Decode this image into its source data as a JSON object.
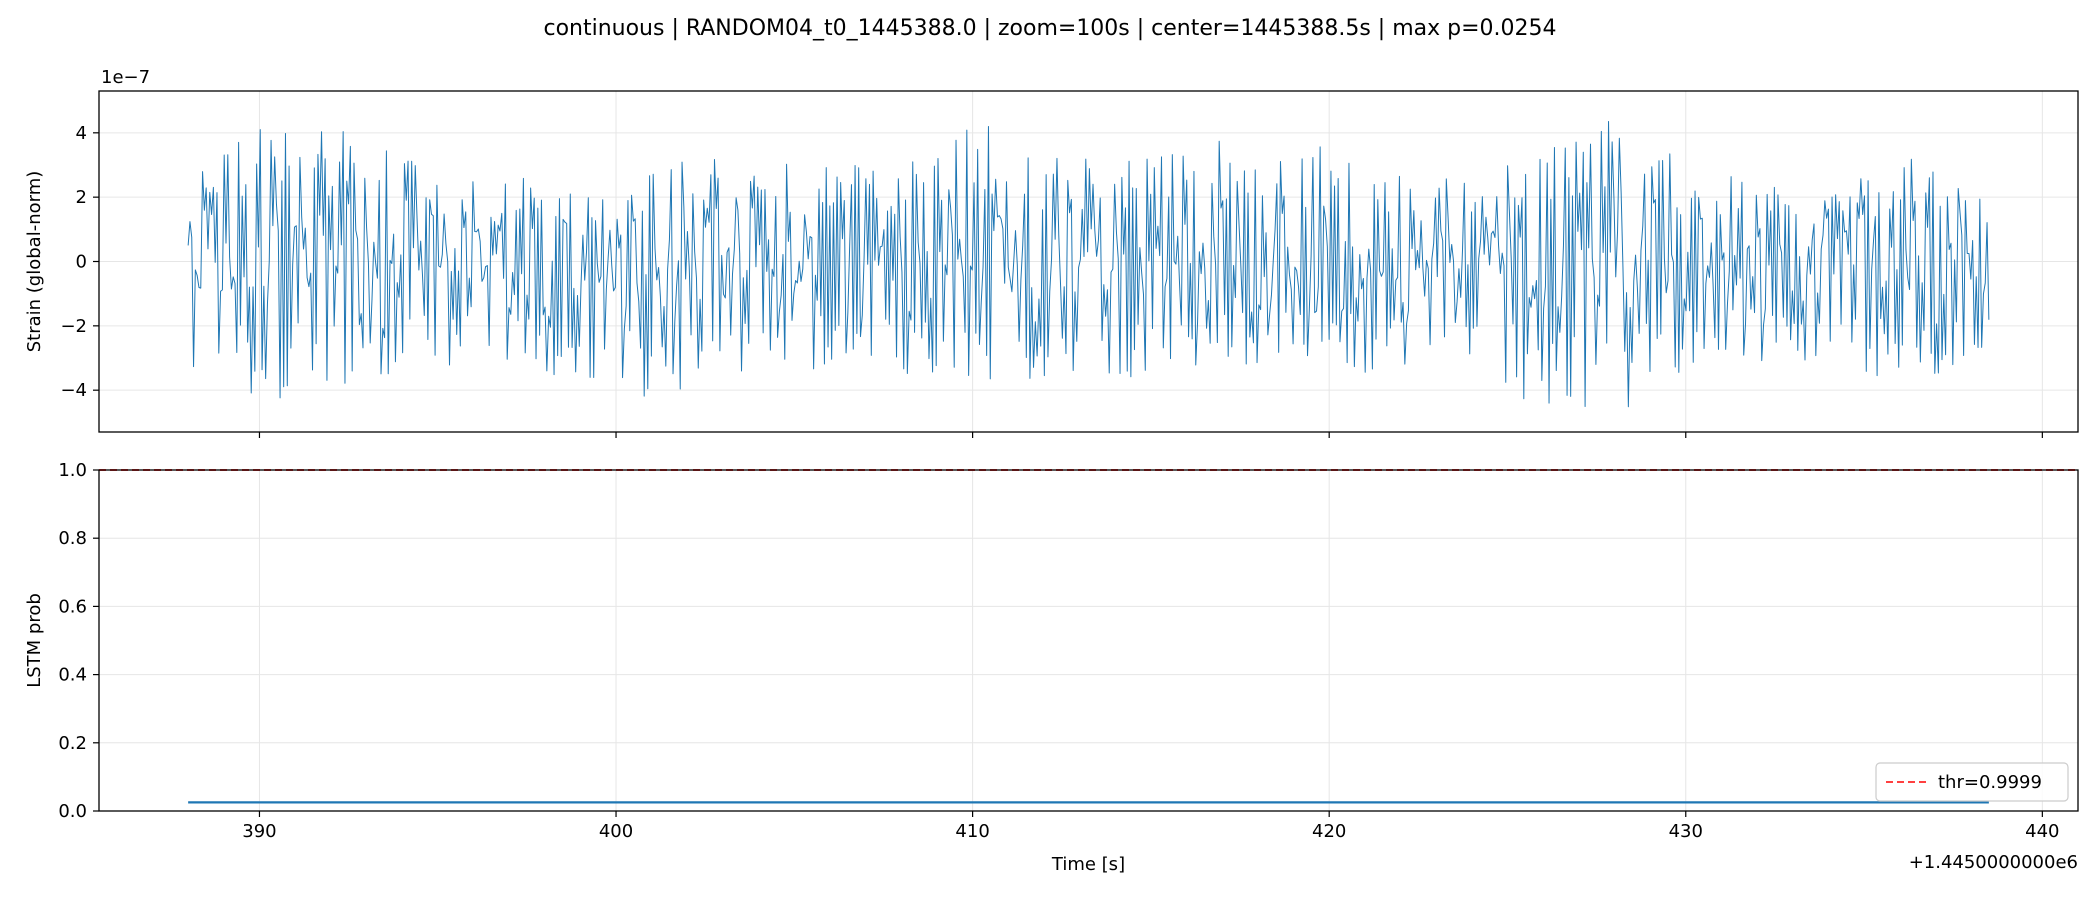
{
  "figure": {
    "title": "continuous | RANDOM04_t0_1445388.0 | zoom=100s | center=1445388.5s | max p=0.0254"
  },
  "chart_data": [
    {
      "type": "line",
      "panel": "top",
      "ylabel": "Strain (global-norm)",
      "y_exponent_label": "1e−7",
      "xlim": [
        385.5,
        441.0
      ],
      "ylim": [
        -5.3,
        5.3
      ],
      "x_offset": 1445000,
      "xticks": [
        390,
        400,
        410,
        420,
        430,
        440
      ],
      "yticks": [
        -4,
        -2,
        0,
        2,
        4
      ],
      "ytick_labels": [
        "−4",
        "−2",
        "0",
        "2",
        "4"
      ],
      "grid": true,
      "series": [
        {
          "color": "#1f77b4",
          "x_range": [
            388.0,
            438.5
          ],
          "envelope_points_x": [
            388.0,
            390.0,
            392.0,
            394.0,
            396.0,
            398.0,
            400.0,
            402.0,
            404.0,
            406.0,
            408.0,
            410.0,
            412.0,
            414.0,
            416.0,
            418.0,
            420.0,
            422.0,
            424.0,
            426.0,
            428.0,
            430.0,
            432.0,
            434.0,
            436.0,
            438.5
          ],
          "envelope_upper": [
            2.9,
            4.2,
            4.5,
            3.4,
            2.5,
            2.8,
            2.8,
            3.3,
            3.0,
            3.2,
            3.0,
            4.8,
            3.4,
            3.2,
            4.1,
            3.5,
            3.7,
            2.9,
            2.6,
            3.7,
            4.5,
            3.1,
            2.5,
            2.3,
            3.3,
            2.4
          ],
          "envelope_lower": [
            -3.4,
            -4.6,
            -3.9,
            -3.5,
            -3.1,
            -3.5,
            -4.2,
            -4.3,
            -3.4,
            -3.6,
            -3.9,
            -4.1,
            -3.6,
            -3.8,
            -3.5,
            -3.3,
            -3.5,
            -3.4,
            -3.3,
            -4.9,
            -4.8,
            -3.4,
            -3.1,
            -3.2,
            -4.1,
            -3.3
          ],
          "note_points": 1000
        }
      ]
    },
    {
      "type": "line",
      "panel": "bottom",
      "xlabel": "Time [s]",
      "ylabel": "LSTM prob",
      "x_offset_label": "+1.4450000000e6",
      "xlim": [
        385.5,
        441.0
      ],
      "ylim": [
        0.0,
        1.0
      ],
      "xticks": [
        390,
        400,
        410,
        420,
        430,
        440
      ],
      "yticks": [
        0.0,
        0.2,
        0.4,
        0.6,
        0.8,
        1.0
      ],
      "ytick_labels": [
        "0.0",
        "0.2",
        "0.4",
        "0.6",
        "0.8",
        "1.0"
      ],
      "grid": true,
      "series": [
        {
          "color": "#1f77b4",
          "x": [
            388.0,
            438.5
          ],
          "y": [
            0.0254,
            0.0254
          ]
        }
      ],
      "threshold": {
        "value": 0.9999,
        "label": "thr=0.9999",
        "color": "#ff0000",
        "style": "dashed"
      },
      "legend_placement": "lower-right"
    }
  ]
}
